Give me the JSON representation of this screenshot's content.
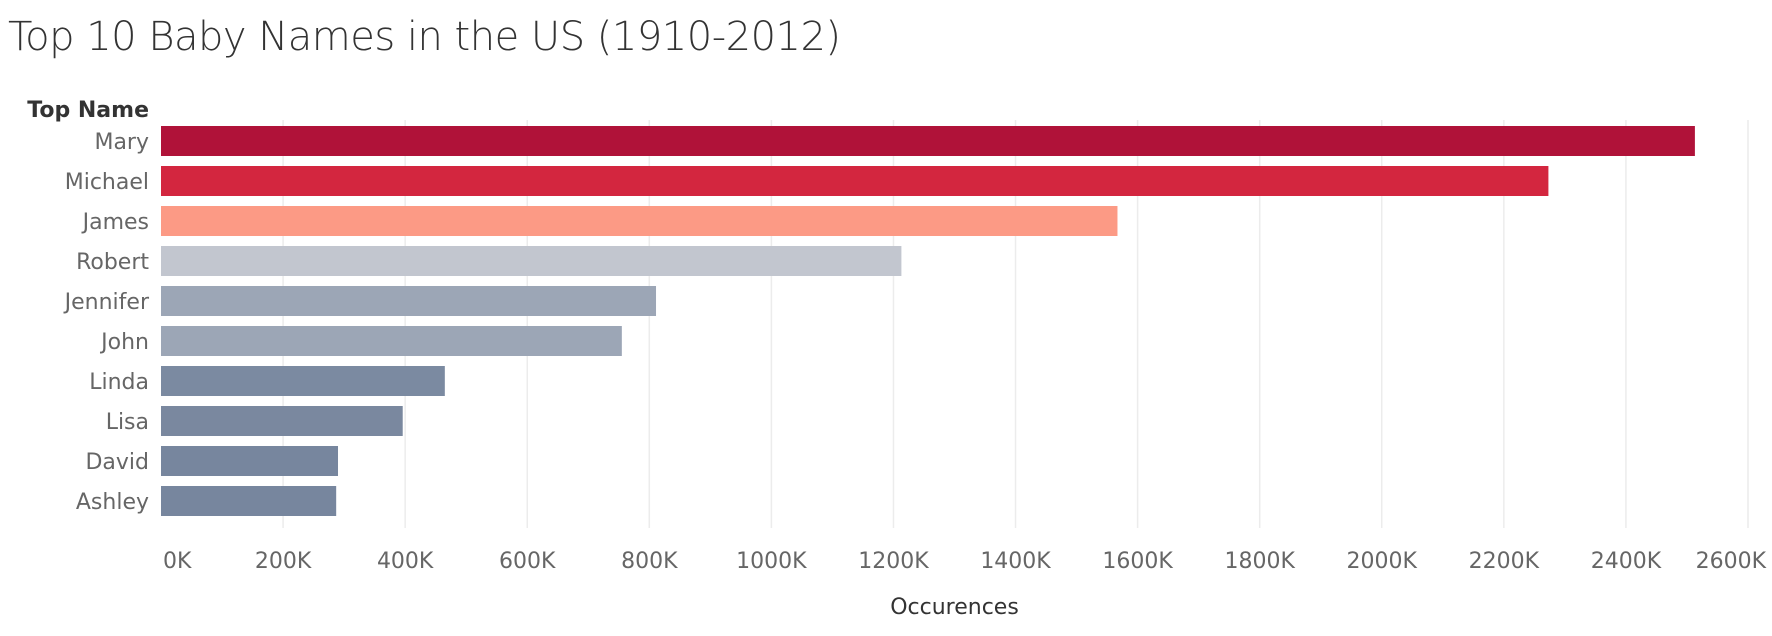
{
  "title": "Top 10 Baby Names in the US (1910-2012)",
  "chart_data": {
    "type": "bar",
    "orientation": "horizontal",
    "title": "Top 10 Baby Names in the US (1910-2012)",
    "category_header": "Top Name",
    "xlabel": "Occurences",
    "ylabel": "Top Name",
    "categories": [
      "Mary",
      "Michael",
      "James",
      "Robert",
      "Jennifer",
      "John",
      "Linda",
      "Lisa",
      "David",
      "Ashley"
    ],
    "values": [
      2513000,
      2273000,
      1567000,
      1213000,
      811000,
      755000,
      465000,
      396000,
      290000,
      287000
    ],
    "colors": [
      "#b01239",
      "#d3263f",
      "#fc9a85",
      "#c2c6cf",
      "#9ca6b6",
      "#9ca6b6",
      "#7b8aa1",
      "#7a889f",
      "#77869e",
      "#77869e"
    ],
    "xlim": [
      0,
      2600000
    ],
    "x_ticks": [
      0,
      200000,
      400000,
      600000,
      800000,
      1000000,
      1200000,
      1400000,
      1600000,
      1800000,
      2000000,
      2200000,
      2400000,
      2600000
    ],
    "x_tick_labels": [
      "0K",
      "200K",
      "400K",
      "600K",
      "800K",
      "1000K",
      "1200K",
      "1400K",
      "1600K",
      "1800K",
      "2000K",
      "2200K",
      "2400K",
      "2600K"
    ],
    "grid": "vertical",
    "legend": "none"
  }
}
